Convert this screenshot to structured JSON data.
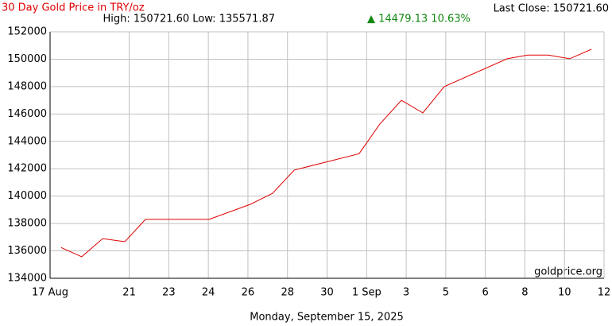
{
  "chart_data": {
    "type": "line",
    "title": "30 Day Gold Price in TRY/oz",
    "last_close": "Last Close: 150721.60",
    "high_low": "High: 150721.60 Low: 135571.87",
    "change": "▲ 14479.13 10.63%",
    "watermark": "goldprice.org",
    "date_label": "Monday, September 15, 2025",
    "grid": true,
    "xlim": [
      0,
      14
    ],
    "xticks": [
      {
        "value": 0,
        "label": "17 Aug"
      },
      {
        "value": 2,
        "label": "21"
      },
      {
        "value": 3,
        "label": "23"
      },
      {
        "value": 4,
        "label": "24"
      },
      {
        "value": 5,
        "label": "26"
      },
      {
        "value": 6,
        "label": "28"
      },
      {
        "value": 7,
        "label": "30"
      },
      {
        "value": 8,
        "label": "1 Sep"
      },
      {
        "value": 9,
        "label": "3"
      },
      {
        "value": 10,
        "label": "5"
      },
      {
        "value": 11,
        "label": "6"
      },
      {
        "value": 12,
        "label": "8"
      },
      {
        "value": 13,
        "label": "10"
      },
      {
        "value": 14,
        "label": "12"
      }
    ],
    "ylim": [
      134000,
      152000
    ],
    "yticks": [
      134000,
      136000,
      138000,
      140000,
      142000,
      144000,
      146000,
      148000,
      150000,
      152000
    ],
    "series": [
      {
        "color": "#e00000",
        "x": [
          0.28,
          0.8,
          1.33,
          1.89,
          2.41,
          2.97,
          3.49,
          4.02,
          5.06,
          5.62,
          6.17,
          7.81,
          8.33,
          8.88,
          9.42,
          9.96,
          11.55,
          12.07,
          12.59,
          13.13,
          13.68
        ],
        "values": [
          136250,
          135571.87,
          136900,
          136670,
          138300,
          138300,
          138300,
          138300,
          139400,
          140200,
          141900,
          143100,
          145250,
          147000,
          146080,
          148000,
          150030,
          150300,
          150300,
          150030,
          150721.6
        ]
      }
    ]
  }
}
